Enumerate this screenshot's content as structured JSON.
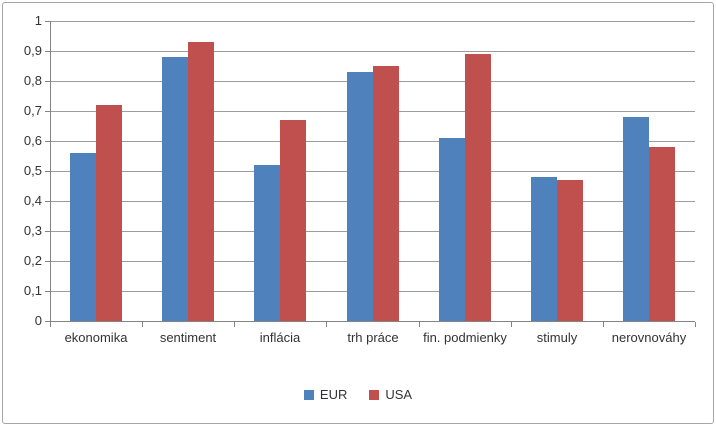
{
  "chart_data": {
    "type": "bar",
    "title": "",
    "xlabel": "",
    "ylabel": "",
    "categories": [
      "ekonomika",
      "sentiment",
      "inflácia",
      "trh práce",
      "fin. podmienky",
      "stimuly",
      "nerovnováhy"
    ],
    "series": [
      {
        "name": "EUR",
        "color": "#4F81BD",
        "values": [
          0.56,
          0.88,
          0.52,
          0.83,
          0.61,
          0.48,
          0.68
        ]
      },
      {
        "name": "USA",
        "color": "#C0504D",
        "values": [
          0.72,
          0.93,
          0.67,
          0.85,
          0.89,
          0.47,
          0.58
        ]
      }
    ],
    "ylim": [
      0,
      1
    ],
    "y_tick_step": 0.1,
    "y_tick_labels": [
      "0",
      "0,1",
      "0,2",
      "0,3",
      "0,4",
      "0,5",
      "0,6",
      "0,7",
      "0,8",
      "0,9",
      "1"
    ],
    "grid": true,
    "legend_position": "bottom"
  },
  "colors": {
    "background": "#ffffff",
    "chart_border": "#a6a6a6",
    "gridline": "#9c9c9c",
    "axis": "#848484",
    "text": "#333333",
    "series_eur": "#4F81BD",
    "series_usa": "#C0504D"
  }
}
